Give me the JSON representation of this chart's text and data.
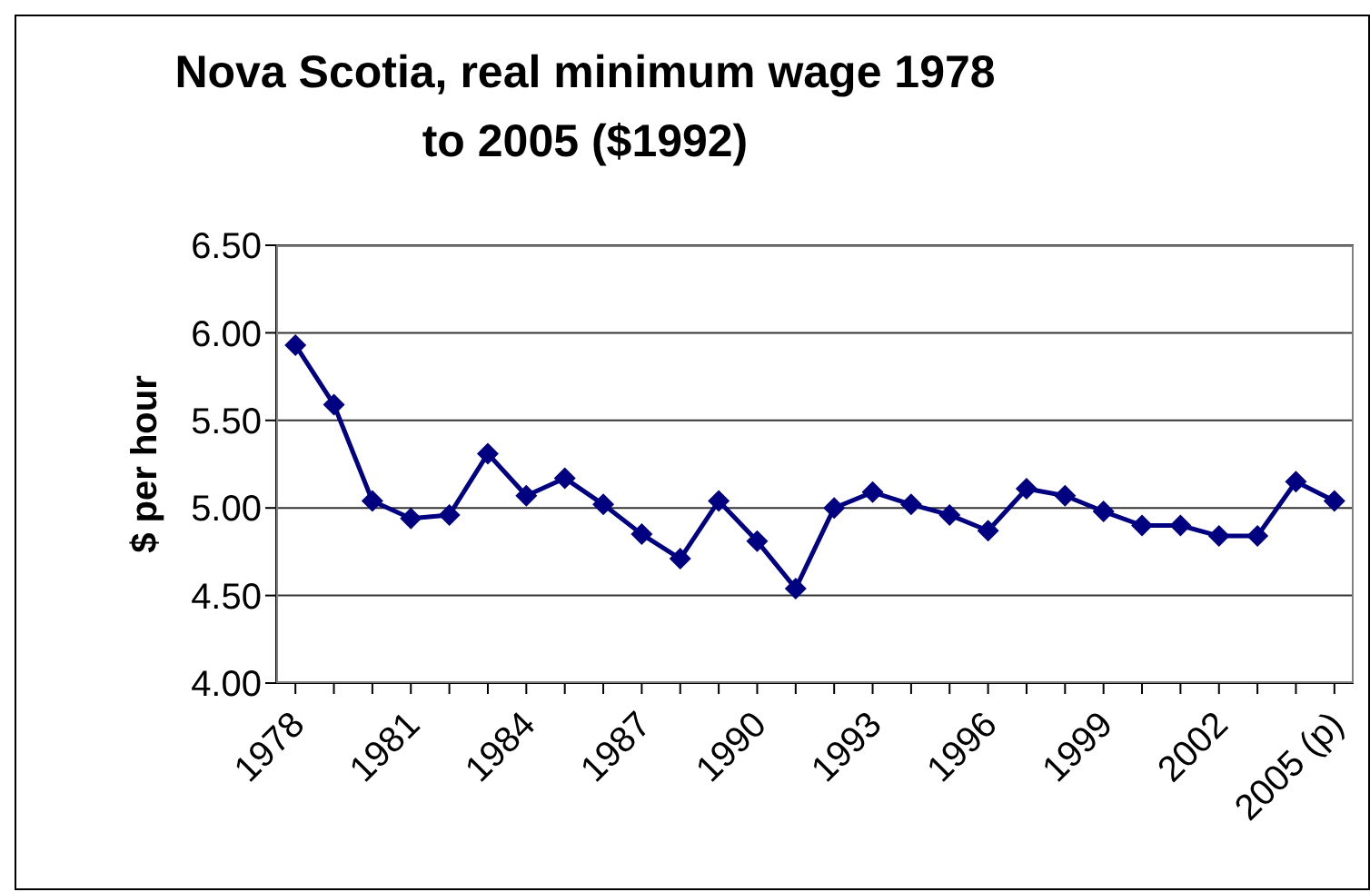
{
  "chart_data": {
    "type": "line",
    "title": "Nova Scotia, real minimum wage 1978 to 2005 ($1992)",
    "ylabel": "$ per hour",
    "categories": [
      "1978",
      null,
      null,
      "1981",
      null,
      null,
      "1984",
      null,
      null,
      "1987",
      null,
      null,
      "1990",
      null,
      null,
      "1993",
      null,
      null,
      "1996",
      null,
      null,
      "1999",
      null,
      null,
      "2002",
      null,
      null,
      "2005 (p)"
    ],
    "series": [
      {
        "color": "#000080",
        "values": [
          5.93,
          5.59,
          5.04,
          4.94,
          4.96,
          5.31,
          5.07,
          5.17,
          5.02,
          4.85,
          4.71,
          5.04,
          4.81,
          4.54,
          5.0,
          5.09,
          5.02,
          4.96,
          4.87,
          5.11,
          5.07,
          4.98,
          4.9,
          4.9,
          4.84,
          4.84,
          5.15,
          5.04
        ]
      }
    ],
    "ylim": [
      4,
      6.5
    ],
    "yticks": [
      {
        "value": 4,
        "label": "4.00"
      },
      {
        "value": 4.5,
        "label": "4.50"
      },
      {
        "value": 5,
        "label": "5.00"
      },
      {
        "value": 5.5,
        "label": "5.50"
      },
      {
        "value": 6,
        "label": "6.00"
      },
      {
        "value": 6.5,
        "label": "6.50"
      }
    ],
    "grid": "y",
    "marker": "diamond",
    "line_style": "solid"
  }
}
